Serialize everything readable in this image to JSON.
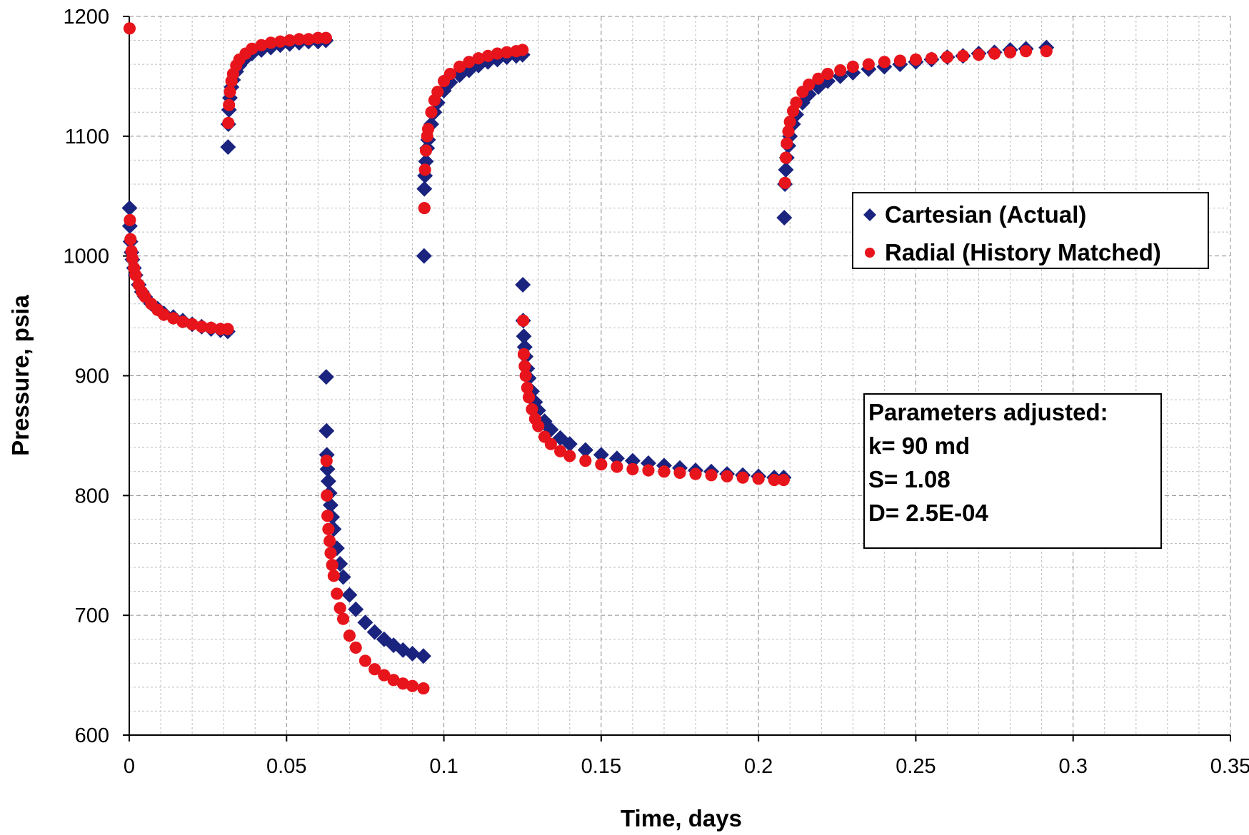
{
  "chart_data": {
    "type": "scatter",
    "xlabel": "Time, days",
    "ylabel": "Pressure, psia",
    "xlim": [
      0,
      0.35
    ],
    "ylim": [
      600,
      1200
    ],
    "xticks": [
      0,
      0.05,
      0.1,
      0.15,
      0.2,
      0.25,
      0.3,
      0.35
    ],
    "yticks": [
      600,
      700,
      800,
      900,
      1000,
      1100,
      1200
    ],
    "xtick_labels": [
      "0",
      "0.05",
      "0.1",
      "0.15",
      "0.2",
      "0.25",
      "0.3",
      "0.35"
    ],
    "ytick_labels": [
      "600",
      "700",
      "800",
      "900",
      "1000",
      "1100",
      "1200"
    ],
    "grid": true,
    "legend_position": "center-right",
    "series": [
      {
        "name": "Cartesian (Actual)",
        "marker": "diamond",
        "color": "#1a237e",
        "segments": [
          [
            [
              0.0001,
              1040
            ],
            [
              0.0002,
              1025
            ],
            [
              0.0004,
              1012
            ],
            [
              0.0007,
              1003
            ],
            [
              0.001,
              997
            ],
            [
              0.0015,
              990
            ],
            [
              0.002,
              984
            ],
            [
              0.003,
              976
            ],
            [
              0.004,
              970
            ],
            [
              0.005,
              966
            ],
            [
              0.007,
              960
            ],
            [
              0.009,
              956
            ],
            [
              0.011,
              952
            ],
            [
              0.014,
              949
            ],
            [
              0.017,
              946
            ],
            [
              0.02,
              943
            ],
            [
              0.023,
              941
            ],
            [
              0.026,
              939
            ],
            [
              0.029,
              938
            ],
            [
              0.0313,
              937
            ]
          ],
          [
            [
              0.0314,
              1091
            ],
            [
              0.0315,
              1110
            ],
            [
              0.0317,
              1122
            ],
            [
              0.032,
              1132
            ],
            [
              0.0325,
              1141
            ],
            [
              0.033,
              1147
            ],
            [
              0.034,
              1154
            ],
            [
              0.035,
              1159
            ],
            [
              0.037,
              1165
            ],
            [
              0.039,
              1169
            ],
            [
              0.042,
              1172
            ],
            [
              0.045,
              1174
            ],
            [
              0.048,
              1176
            ],
            [
              0.051,
              1177
            ],
            [
              0.054,
              1178
            ],
            [
              0.057,
              1179
            ],
            [
              0.06,
              1179
            ],
            [
              0.0625,
              1180
            ]
          ],
          [
            [
              0.0626,
              899
            ],
            [
              0.0627,
              854
            ],
            [
              0.0628,
              834
            ],
            [
              0.063,
              822
            ],
            [
              0.0633,
              812
            ],
            [
              0.0637,
              802
            ],
            [
              0.064,
              792
            ],
            [
              0.0645,
              782
            ],
            [
              0.065,
              772
            ],
            [
              0.066,
              756
            ],
            [
              0.067,
              743
            ],
            [
              0.068,
              732
            ],
            [
              0.07,
              717
            ],
            [
              0.072,
              705
            ],
            [
              0.075,
              694
            ],
            [
              0.078,
              686
            ],
            [
              0.081,
              680
            ],
            [
              0.084,
              675
            ],
            [
              0.087,
              671
            ],
            [
              0.09,
              668
            ],
            [
              0.0935,
              666
            ]
          ],
          [
            [
              0.0937,
              1000
            ],
            [
              0.0938,
              1056
            ],
            [
              0.094,
              1067
            ],
            [
              0.0943,
              1079
            ],
            [
              0.0947,
              1090
            ],
            [
              0.095,
              1097
            ],
            [
              0.096,
              1110
            ],
            [
              0.097,
              1120
            ],
            [
              0.098,
              1128
            ],
            [
              0.1,
              1138
            ],
            [
              0.102,
              1145
            ],
            [
              0.105,
              1151
            ],
            [
              0.108,
              1155
            ],
            [
              0.111,
              1159
            ],
            [
              0.114,
              1162
            ],
            [
              0.117,
              1164
            ],
            [
              0.12,
              1166
            ],
            [
              0.123,
              1167
            ],
            [
              0.125,
              1168
            ]
          ],
          [
            [
              0.1251,
              976
            ],
            [
              0.1252,
              946
            ],
            [
              0.1254,
              933
            ],
            [
              0.1257,
              924
            ],
            [
              0.126,
              916
            ],
            [
              0.1265,
              906
            ],
            [
              0.127,
              898
            ],
            [
              0.128,
              887
            ],
            [
              0.129,
              878
            ],
            [
              0.13,
              871
            ],
            [
              0.132,
              862
            ],
            [
              0.134,
              855
            ],
            [
              0.137,
              848
            ],
            [
              0.14,
              843
            ],
            [
              0.145,
              838
            ],
            [
              0.15,
              834
            ],
            [
              0.155,
              831
            ],
            [
              0.16,
              829
            ],
            [
              0.165,
              827
            ],
            [
              0.17,
              825
            ],
            [
              0.175,
              823
            ],
            [
              0.18,
              821
            ],
            [
              0.185,
              820
            ],
            [
              0.19,
              818
            ],
            [
              0.195,
              817
            ],
            [
              0.2,
              816
            ],
            [
              0.205,
              815
            ],
            [
              0.208,
              815
            ]
          ],
          [
            [
              0.2082,
              1032
            ],
            [
              0.2084,
              1060
            ],
            [
              0.2087,
              1072
            ],
            [
              0.209,
              1082
            ],
            [
              0.2095,
              1092
            ],
            [
              0.21,
              1100
            ],
            [
              0.211,
              1110
            ],
            [
              0.212,
              1118
            ],
            [
              0.214,
              1128
            ],
            [
              0.216,
              1135
            ],
            [
              0.219,
              1141
            ],
            [
              0.222,
              1146
            ],
            [
              0.226,
              1150
            ],
            [
              0.23,
              1153
            ],
            [
              0.235,
              1156
            ],
            [
              0.24,
              1158
            ],
            [
              0.245,
              1160
            ],
            [
              0.25,
              1162
            ],
            [
              0.255,
              1164
            ],
            [
              0.26,
              1166
            ],
            [
              0.265,
              1167
            ],
            [
              0.27,
              1169
            ],
            [
              0.275,
              1170
            ],
            [
              0.28,
              1172
            ],
            [
              0.285,
              1173
            ],
            [
              0.2915,
              1174
            ]
          ]
        ]
      },
      {
        "name": "Radial (History Matched)",
        "marker": "circle",
        "color": "#e8141b",
        "segments": [
          [
            [
              0.0001,
              1190
            ],
            [
              0.0002,
              1030
            ],
            [
              0.0004,
              1014
            ],
            [
              0.0007,
              1004
            ],
            [
              0.001,
              998
            ],
            [
              0.0015,
              990
            ],
            [
              0.002,
              984
            ],
            [
              0.003,
              976
            ],
            [
              0.004,
              970
            ],
            [
              0.005,
              966
            ],
            [
              0.007,
              960
            ],
            [
              0.009,
              955
            ],
            [
              0.011,
              951
            ],
            [
              0.014,
              948
            ],
            [
              0.017,
              945
            ],
            [
              0.02,
              943
            ],
            [
              0.023,
              941
            ],
            [
              0.026,
              940
            ],
            [
              0.029,
              939
            ],
            [
              0.0313,
              939
            ]
          ],
          [
            [
              0.0315,
              1111
            ],
            [
              0.0317,
              1126
            ],
            [
              0.032,
              1137
            ],
            [
              0.0325,
              1146
            ],
            [
              0.033,
              1152
            ],
            [
              0.034,
              1159
            ],
            [
              0.035,
              1164
            ],
            [
              0.037,
              1169
            ],
            [
              0.039,
              1173
            ],
            [
              0.042,
              1176
            ],
            [
              0.045,
              1178
            ],
            [
              0.048,
              1179
            ],
            [
              0.051,
              1180
            ],
            [
              0.054,
              1181
            ],
            [
              0.057,
              1181
            ],
            [
              0.06,
              1182
            ],
            [
              0.0625,
              1182
            ]
          ],
          [
            [
              0.0627,
              829
            ],
            [
              0.0628,
              800
            ],
            [
              0.063,
              783
            ],
            [
              0.0633,
              772
            ],
            [
              0.0637,
              762
            ],
            [
              0.064,
              752
            ],
            [
              0.0645,
              742
            ],
            [
              0.065,
              733
            ],
            [
              0.066,
              718
            ],
            [
              0.067,
              706
            ],
            [
              0.068,
              697
            ],
            [
              0.07,
              683
            ],
            [
              0.072,
              673
            ],
            [
              0.075,
              662
            ],
            [
              0.078,
              655
            ],
            [
              0.081,
              650
            ],
            [
              0.084,
              646
            ],
            [
              0.087,
              643
            ],
            [
              0.09,
              641
            ],
            [
              0.0935,
              639
            ]
          ],
          [
            [
              0.0938,
              1040
            ],
            [
              0.094,
              1072
            ],
            [
              0.0943,
              1088
            ],
            [
              0.0947,
              1100
            ],
            [
              0.095,
              1106
            ],
            [
              0.096,
              1120
            ],
            [
              0.097,
              1130
            ],
            [
              0.098,
              1137
            ],
            [
              0.1,
              1146
            ],
            [
              0.102,
              1152
            ],
            [
              0.105,
              1158
            ],
            [
              0.108,
              1162
            ],
            [
              0.111,
              1165
            ],
            [
              0.114,
              1167
            ],
            [
              0.117,
              1169
            ],
            [
              0.12,
              1170
            ],
            [
              0.123,
              1171
            ],
            [
              0.125,
              1172
            ]
          ],
          [
            [
              0.1252,
              946
            ],
            [
              0.1254,
              918
            ],
            [
              0.1257,
              908
            ],
            [
              0.126,
              900
            ],
            [
              0.1265,
              890
            ],
            [
              0.127,
              882
            ],
            [
              0.128,
              872
            ],
            [
              0.129,
              864
            ],
            [
              0.13,
              858
            ],
            [
              0.132,
              849
            ],
            [
              0.134,
              843
            ],
            [
              0.137,
              837
            ],
            [
              0.14,
              833
            ],
            [
              0.145,
              829
            ],
            [
              0.15,
              826
            ],
            [
              0.155,
              824
            ],
            [
              0.16,
              822
            ],
            [
              0.165,
              821
            ],
            [
              0.17,
              820
            ],
            [
              0.175,
              819
            ],
            [
              0.18,
              818
            ],
            [
              0.185,
              817
            ],
            [
              0.19,
              816
            ],
            [
              0.195,
              815
            ],
            [
              0.2,
              814
            ],
            [
              0.205,
              813
            ],
            [
              0.208,
              813
            ]
          ],
          [
            [
              0.2084,
              1061
            ],
            [
              0.2087,
              1082
            ],
            [
              0.209,
              1094
            ],
            [
              0.2095,
              1104
            ],
            [
              0.21,
              1112
            ],
            [
              0.211,
              1121
            ],
            [
              0.212,
              1128
            ],
            [
              0.214,
              1137
            ],
            [
              0.216,
              1143
            ],
            [
              0.219,
              1148
            ],
            [
              0.222,
              1152
            ],
            [
              0.226,
              1155
            ],
            [
              0.23,
              1158
            ],
            [
              0.235,
              1160
            ],
            [
              0.24,
              1162
            ],
            [
              0.245,
              1163
            ],
            [
              0.25,
              1164
            ],
            [
              0.255,
              1165
            ],
            [
              0.26,
              1166
            ],
            [
              0.265,
              1167
            ],
            [
              0.27,
              1168
            ],
            [
              0.275,
              1169
            ],
            [
              0.28,
              1170
            ],
            [
              0.285,
              1171
            ],
            [
              0.2915,
              1171
            ]
          ]
        ]
      }
    ],
    "annotation": {
      "lines": [
        "Parameters adjusted:",
        "k= 90 md",
        "S= 1.08",
        "D= 2.5E-04"
      ]
    }
  }
}
